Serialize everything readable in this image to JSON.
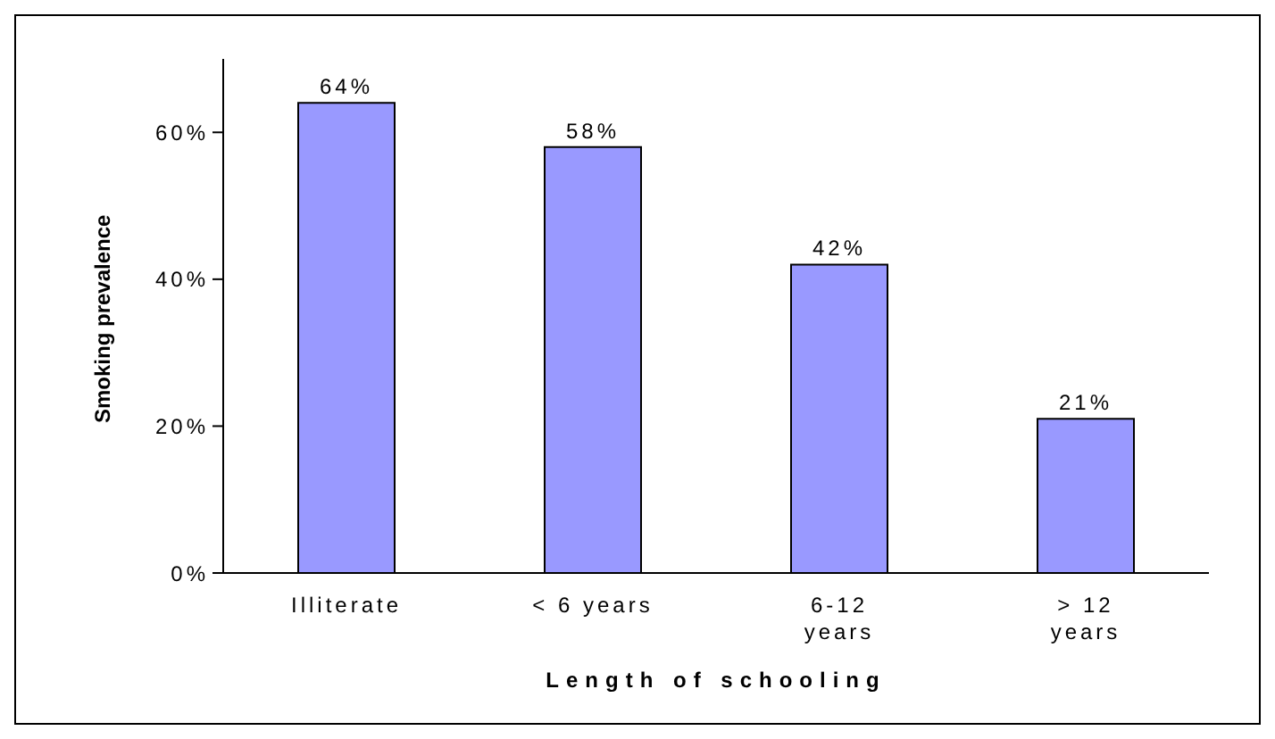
{
  "chart_data": {
    "type": "bar",
    "xlabel": "Length of schooling",
    "ylabel": "Smoking prevalence",
    "categories": [
      "Illiterate",
      "< 6 years",
      "6-12 years",
      "> 12 years"
    ],
    "values": [
      64,
      58,
      42,
      21
    ],
    "value_labels": [
      "64%",
      "58%",
      "42%",
      "21%"
    ],
    "color": "#9999ff",
    "ylim": [
      0,
      70
    ],
    "yticks": [
      {
        "value": 0,
        "label": "0%"
      },
      {
        "value": 20,
        "label": "20%"
      },
      {
        "value": 40,
        "label": "40%"
      },
      {
        "value": 60,
        "label": "60%"
      }
    ],
    "grid": false,
    "legend": false
  }
}
